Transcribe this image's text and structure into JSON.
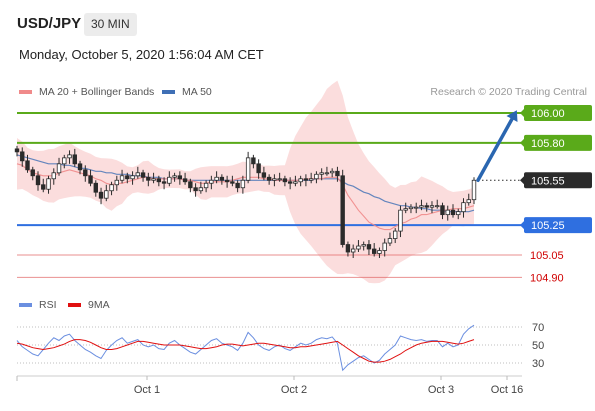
{
  "header": {
    "pair": "USD/JPY",
    "timeframe": "30 MIN",
    "date": "Monday, October 5, 2020 1:56:04 AM CET"
  },
  "legend": {
    "ma20_label": "MA 20 + Bollinger Bands",
    "ma50_label": "MA 50",
    "credit": "Research © 2020 Trading Central"
  },
  "rsi_legend": {
    "rsi_label": "RSI",
    "ma9_label": "9MA"
  },
  "colors": {
    "ma20": "#f08a8a",
    "ma50": "#3f6fb5",
    "resistance": "#5aaa1a",
    "support": "#2f6fe0",
    "minor_level": "#e06060",
    "candle": "#2b2b2b",
    "band": "#f9d2d2",
    "rsi": "#6b8fe0",
    "rsi_ma": "#e01010",
    "current_price": "#2b2b2b"
  },
  "chart_data": [
    {
      "type": "candlestick",
      "title": "USD/JPY",
      "price_levels": [
        {
          "label": "106.00",
          "value": 106.0,
          "kind": "resistance"
        },
        {
          "label": "105.80",
          "value": 105.8,
          "kind": "resistance"
        },
        {
          "label": "105.55",
          "value": 105.55,
          "kind": "current"
        },
        {
          "label": "105.25",
          "value": 105.25,
          "kind": "support"
        },
        {
          "label": "105.05",
          "value": 105.05,
          "kind": "minor"
        },
        {
          "label": "104.90",
          "value": 104.9,
          "kind": "minor"
        }
      ],
      "x_ticks": [
        "Oct 1",
        "Oct 2",
        "Oct 3",
        "Oct 16"
      ],
      "projection": {
        "from": 105.55,
        "to": 106.0
      },
      "series": [
        {
          "name": "Price",
          "close": [
            105.74,
            105.68,
            105.62,
            105.58,
            105.52,
            105.49,
            105.56,
            105.6,
            105.66,
            105.7,
            105.72,
            105.66,
            105.62,
            105.58,
            105.53,
            105.47,
            105.43,
            105.48,
            105.52,
            105.55,
            105.58,
            105.56,
            105.58,
            105.6,
            105.57,
            105.55,
            105.56,
            105.54,
            105.53,
            105.57,
            105.58,
            105.56,
            105.54,
            105.5,
            105.48,
            105.5,
            105.53,
            105.55,
            105.57,
            105.55,
            105.54,
            105.53,
            105.5,
            105.55,
            105.7,
            105.66,
            105.6,
            105.57,
            105.55,
            105.56,
            105.56,
            105.54,
            105.53,
            105.54,
            105.56,
            105.55,
            105.56,
            105.59,
            105.6,
            105.6,
            105.61,
            105.58,
            105.12,
            105.07,
            105.09,
            105.11,
            105.12,
            105.09,
            105.06,
            105.08,
            105.13,
            105.16,
            105.21,
            105.35,
            105.36,
            105.37,
            105.37,
            105.38,
            105.37,
            105.38,
            105.38,
            105.32,
            105.35,
            105.32,
            105.34,
            105.4,
            105.42,
            105.55
          ]
        },
        {
          "name": "MA 20 + Bollinger Bands",
          "values": [
            105.66,
            105.65,
            105.62,
            105.6,
            105.59,
            105.58,
            105.58,
            105.58,
            105.6,
            105.61,
            105.62,
            105.61,
            105.6,
            105.59,
            105.58,
            105.56,
            105.55,
            105.53,
            105.52,
            105.53,
            105.53,
            105.54,
            105.55,
            105.56,
            105.57,
            105.57,
            105.56,
            105.56,
            105.56,
            105.56,
            105.56,
            105.56,
            105.55,
            105.55,
            105.54,
            105.53,
            105.53,
            105.54,
            105.54,
            105.54,
            105.54,
            105.55,
            105.56,
            105.57,
            105.57,
            105.57,
            105.57,
            105.56,
            105.56,
            105.55,
            105.55,
            105.55,
            105.55,
            105.55,
            105.55,
            105.56,
            105.56,
            105.56,
            105.56,
            105.57,
            105.57,
            105.57,
            105.52,
            105.45,
            105.4,
            105.35,
            105.31,
            105.27,
            105.25,
            105.23,
            105.22,
            105.22,
            105.24,
            105.26,
            105.27,
            105.29,
            105.3,
            105.32,
            105.32,
            105.33,
            105.34,
            105.35,
            105.35,
            105.36,
            105.36,
            105.36,
            105.37,
            105.38
          ]
        },
        {
          "name": "MA 50",
          "values": [
            105.72,
            105.71,
            105.7,
            105.69,
            105.68,
            105.67,
            105.66,
            105.66,
            105.66,
            105.65,
            105.65,
            105.64,
            105.63,
            105.63,
            105.62,
            105.61,
            105.61,
            105.6,
            105.6,
            105.59,
            105.59,
            105.59,
            105.58,
            105.58,
            105.58,
            105.57,
            105.57,
            105.57,
            105.56,
            105.56,
            105.56,
            105.56,
            105.55,
            105.55,
            105.55,
            105.55,
            105.55,
            105.55,
            105.55,
            105.55,
            105.55,
            105.55,
            105.55,
            105.55,
            105.55,
            105.55,
            105.55,
            105.55,
            105.55,
            105.55,
            105.55,
            105.55,
            105.55,
            105.55,
            105.55,
            105.55,
            105.55,
            105.56,
            105.56,
            105.56,
            105.56,
            105.56,
            105.54,
            105.52,
            105.51,
            105.49,
            105.47,
            105.46,
            105.44,
            105.43,
            105.41,
            105.4,
            105.39,
            105.38,
            105.38,
            105.37,
            105.37,
            105.36,
            105.36,
            105.35,
            105.35,
            105.35,
            105.34,
            105.34,
            105.34,
            105.34,
            105.34,
            105.35
          ]
        }
      ]
    },
    {
      "type": "line",
      "title": "RSI",
      "y_ticks": [
        70,
        50,
        30
      ],
      "series": [
        {
          "name": "RSI",
          "values": [
            55,
            48,
            44,
            40,
            38,
            45,
            52,
            58,
            55,
            60,
            62,
            55,
            50,
            45,
            42,
            38,
            35,
            44,
            50,
            55,
            58,
            52,
            54,
            56,
            50,
            48,
            50,
            46,
            45,
            52,
            55,
            50,
            46,
            42,
            40,
            45,
            50,
            55,
            57,
            52,
            50,
            48,
            44,
            52,
            64,
            58,
            50,
            46,
            44,
            48,
            50,
            46,
            44,
            48,
            52,
            50,
            52,
            56,
            58,
            57,
            59,
            52,
            22,
            28,
            32,
            36,
            38,
            34,
            30,
            33,
            40,
            45,
            50,
            60,
            58,
            56,
            55,
            56,
            54,
            55,
            55,
            48,
            52,
            48,
            50,
            62,
            68,
            72
          ]
        },
        {
          "name": "9MA",
          "values": [
            52,
            51,
            49,
            47,
            46,
            45,
            46,
            47,
            49,
            51,
            54,
            56,
            56,
            55,
            53,
            50,
            47,
            45,
            45,
            46,
            48,
            50,
            52,
            54,
            54,
            53,
            52,
            51,
            50,
            50,
            50,
            50,
            49,
            48,
            47,
            46,
            46,
            47,
            48,
            50,
            51,
            51,
            50,
            49,
            50,
            51,
            52,
            52,
            51,
            50,
            49,
            48,
            47,
            47,
            48,
            48,
            49,
            50,
            51,
            52,
            53,
            54,
            50,
            46,
            42,
            38,
            35,
            32,
            31,
            31,
            32,
            34,
            37,
            40,
            44,
            47,
            50,
            52,
            53,
            54,
            54,
            54,
            53,
            52,
            51,
            52,
            54,
            56
          ]
        }
      ]
    }
  ]
}
